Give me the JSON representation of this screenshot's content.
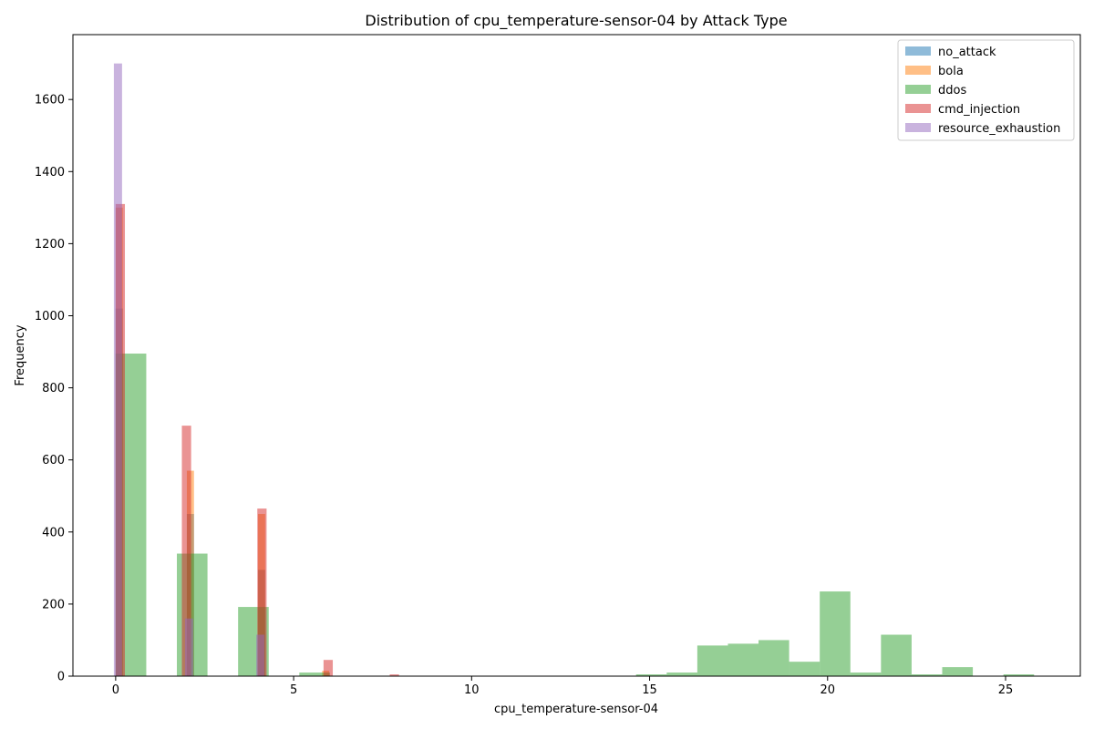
{
  "chart_data": {
    "type": "bar",
    "title": "Distribution of cpu_temperature-sensor-04 by Attack Type",
    "xlabel": "cpu_temperature-sensor-04",
    "ylabel": "Frequency",
    "xlim": [
      -1.2,
      27.1
    ],
    "ylim": [
      0,
      1780
    ],
    "xticks": [
      0,
      5,
      10,
      15,
      20,
      25
    ],
    "yticks": [
      0,
      200,
      400,
      600,
      800,
      1000,
      1200,
      1400,
      1600
    ],
    "grid": false,
    "legend_position": "top-right",
    "bar_opacity": 0.5,
    "series": [
      {
        "name": "no_attack",
        "color": "#1f77b4",
        "bins": [
          {
            "x0": 0.0,
            "x1": 0.2,
            "value": 1020
          },
          {
            "x0": 2.0,
            "x1": 2.2,
            "value": 450
          },
          {
            "x0": 4.0,
            "x1": 4.2,
            "value": 295
          }
        ]
      },
      {
        "name": "bola",
        "color": "#ff7f0e",
        "bins": [
          {
            "x0": 0.0,
            "x1": 0.2,
            "value": 1300
          },
          {
            "x0": 2.0,
            "x1": 2.2,
            "value": 570
          },
          {
            "x0": 4.0,
            "x1": 4.2,
            "value": 450
          },
          {
            "x0": 5.8,
            "x1": 6.0,
            "value": 15
          }
        ]
      },
      {
        "name": "ddos",
        "color": "#2ca02c",
        "bins": [
          {
            "x0": 0.0,
            "x1": 0.86,
            "value": 895
          },
          {
            "x0": 1.72,
            "x1": 2.58,
            "value": 340
          },
          {
            "x0": 3.44,
            "x1": 4.3,
            "value": 192
          },
          {
            "x0": 5.16,
            "x1": 6.02,
            "value": 10
          },
          {
            "x0": 14.62,
            "x1": 15.48,
            "value": 5
          },
          {
            "x0": 15.48,
            "x1": 16.34,
            "value": 10
          },
          {
            "x0": 16.34,
            "x1": 17.2,
            "value": 85
          },
          {
            "x0": 17.2,
            "x1": 18.06,
            "value": 90
          },
          {
            "x0": 18.06,
            "x1": 18.92,
            "value": 100
          },
          {
            "x0": 18.92,
            "x1": 19.78,
            "value": 40
          },
          {
            "x0": 19.78,
            "x1": 20.64,
            "value": 235
          },
          {
            "x0": 20.64,
            "x1": 21.5,
            "value": 10
          },
          {
            "x0": 21.5,
            "x1": 22.36,
            "value": 115
          },
          {
            "x0": 22.36,
            "x1": 23.22,
            "value": 5
          },
          {
            "x0": 23.22,
            "x1": 24.08,
            "value": 25
          },
          {
            "x0": 24.94,
            "x1": 25.8,
            "value": 5
          }
        ]
      },
      {
        "name": "cmd_injection",
        "color": "#d62728",
        "bins": [
          {
            "x0": 0.0,
            "x1": 0.26,
            "value": 1310
          },
          {
            "x0": 1.86,
            "x1": 2.12,
            "value": 695
          },
          {
            "x0": 3.98,
            "x1": 4.24,
            "value": 465
          },
          {
            "x0": 5.84,
            "x1": 6.1,
            "value": 45
          },
          {
            "x0": 7.7,
            "x1": 7.96,
            "value": 5
          }
        ]
      },
      {
        "name": "resource_exhaustion",
        "color": "#9467bd",
        "bins": [
          {
            "x0": -0.05,
            "x1": 0.18,
            "value": 1700
          },
          {
            "x0": 1.95,
            "x1": 2.18,
            "value": 160
          },
          {
            "x0": 3.95,
            "x1": 4.18,
            "value": 115
          }
        ]
      }
    ]
  }
}
